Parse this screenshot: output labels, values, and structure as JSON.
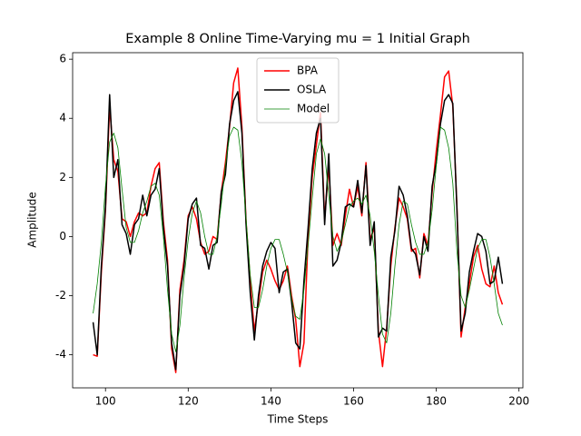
{
  "chart_data": {
    "type": "line",
    "title": "Example 8 Online Time-Varying mu = 1 Initial Graph",
    "xlabel": "Time Steps",
    "ylabel": "Amplitude",
    "x": [
      97,
      98,
      99,
      100,
      101,
      102,
      103,
      104,
      105,
      106,
      107,
      108,
      109,
      110,
      111,
      112,
      113,
      114,
      115,
      116,
      117,
      118,
      119,
      120,
      121,
      122,
      123,
      124,
      125,
      126,
      127,
      128,
      129,
      130,
      131,
      132,
      133,
      134,
      135,
      136,
      137,
      138,
      139,
      140,
      141,
      142,
      143,
      144,
      145,
      146,
      147,
      148,
      149,
      150,
      151,
      152,
      153,
      154,
      155,
      156,
      157,
      158,
      159,
      160,
      161,
      162,
      163,
      164,
      165,
      166,
      167,
      168,
      169,
      170,
      171,
      172,
      173,
      174,
      175,
      176,
      177,
      178,
      179,
      180,
      181,
      182,
      183,
      184,
      185,
      186,
      187,
      188,
      189,
      190,
      191,
      192,
      193,
      194,
      195,
      196
    ],
    "series": [
      {
        "name": "BPA",
        "color": "#ff0000",
        "linewidth": 1.5,
        "values": [
          -4.0,
          -4.05,
          -1.2,
          0.9,
          4.4,
          2.6,
          2.2,
          0.6,
          0.5,
          0.0,
          0.5,
          0.8,
          0.7,
          0.8,
          1.7,
          2.3,
          2.5,
          0.5,
          -0.8,
          -3.8,
          -4.6,
          -1.8,
          -0.8,
          0.7,
          1.0,
          0.6,
          -0.2,
          -0.6,
          -0.5,
          0.0,
          -0.1,
          1.5,
          2.5,
          3.7,
          5.2,
          5.7,
          3.7,
          0.5,
          -1.5,
          -3.2,
          -2.2,
          -1.2,
          -0.8,
          -1.1,
          -1.5,
          -1.8,
          -1.5,
          -1.0,
          -2.0,
          -2.8,
          -4.4,
          -3.6,
          0.0,
          2.0,
          3.1,
          4.2,
          0.6,
          2.4,
          -0.3,
          0.1,
          -0.3,
          0.7,
          1.6,
          1.0,
          1.7,
          0.7,
          2.5,
          -0.1,
          0.3,
          -3.2,
          -4.4,
          -3.1,
          -1.0,
          0.3,
          1.3,
          1.0,
          0.6,
          -0.5,
          -0.4,
          -1.4,
          0.1,
          -0.3,
          1.5,
          2.9,
          4.1,
          5.4,
          5.6,
          4.4,
          1.0,
          -3.4,
          -2.4,
          -1.6,
          -0.7,
          -0.3,
          -1.1,
          -1.6,
          -1.7,
          -1.0,
          -1.9,
          -2.3
        ]
      },
      {
        "name": "OSLA",
        "color": "#000000",
        "linewidth": 1.5,
        "values": [
          -2.9,
          -4.0,
          -1.0,
          1.0,
          4.8,
          2.0,
          2.6,
          0.4,
          0.1,
          -0.6,
          0.4,
          0.6,
          1.4,
          0.7,
          1.4,
          1.6,
          2.3,
          0.3,
          -1.0,
          -3.6,
          -4.5,
          -2.0,
          -1.0,
          0.6,
          1.1,
          1.3,
          -0.3,
          -0.4,
          -1.1,
          -0.3,
          -0.2,
          1.5,
          2.1,
          3.8,
          4.6,
          4.9,
          3.5,
          0.4,
          -1.9,
          -3.5,
          -2.0,
          -1.0,
          -0.5,
          -0.2,
          -0.4,
          -1.9,
          -1.2,
          -1.1,
          -2.2,
          -3.6,
          -3.8,
          -1.5,
          0.3,
          2.3,
          3.5,
          4.0,
          0.4,
          2.8,
          -1.0,
          -0.8,
          -0.2,
          1.0,
          1.1,
          1.0,
          1.9,
          0.8,
          2.4,
          -0.3,
          0.5,
          -3.4,
          -3.1,
          -3.2,
          -0.7,
          0.2,
          1.7,
          1.4,
          0.7,
          -0.4,
          -0.6,
          -1.3,
          0.0,
          -0.5,
          1.7,
          2.5,
          3.8,
          4.6,
          4.8,
          4.5,
          0.9,
          -3.2,
          -2.6,
          -1.2,
          -0.5,
          0.1,
          0.0,
          -0.5,
          -1.6,
          -1.5,
          -0.7,
          -1.6
        ]
      },
      {
        "name": "Model",
        "color": "#008000",
        "linewidth": 0.8,
        "values": [
          -2.6,
          -1.6,
          -0.2,
          1.7,
          3.2,
          3.5,
          3.0,
          1.6,
          0.3,
          -0.2,
          -0.2,
          0.2,
          0.8,
          1.2,
          1.7,
          1.8,
          1.4,
          0.0,
          -1.8,
          -3.3,
          -3.9,
          -3.0,
          -1.4,
          -0.1,
          0.8,
          1.2,
          0.8,
          0.0,
          -0.6,
          -0.6,
          0.0,
          1.1,
          2.4,
          3.4,
          3.7,
          3.6,
          2.5,
          0.6,
          -1.3,
          -2.4,
          -2.4,
          -1.8,
          -1.0,
          -0.4,
          -0.1,
          -0.1,
          -0.6,
          -1.2,
          -2.1,
          -2.7,
          -2.8,
          -1.8,
          -0.3,
          1.3,
          2.8,
          3.3,
          2.8,
          1.4,
          0.0,
          -0.5,
          -0.2,
          0.4,
          1.0,
          1.2,
          1.3,
          1.1,
          1.4,
          0.7,
          -0.5,
          -2.0,
          -3.3,
          -3.6,
          -2.6,
          -1.0,
          0.4,
          1.2,
          1.1,
          0.4,
          -0.2,
          -0.6,
          -0.6,
          -0.2,
          0.9,
          2.4,
          3.7,
          3.6,
          3.0,
          1.8,
          -0.5,
          -2.0,
          -2.4,
          -1.8,
          -1.1,
          -0.4,
          -0.1,
          -0.1,
          -0.7,
          -1.6,
          -2.6,
          -3.0
        ]
      }
    ],
    "xlim": [
      92.05,
      200.95
    ],
    "xticks": [
      100,
      120,
      140,
      160,
      180,
      200
    ],
    "ylim": [
      -5.12,
      6.22
    ],
    "yticks": [
      -4,
      -2,
      0,
      2,
      4,
      6
    ],
    "grid": false,
    "legend": "upper center"
  }
}
